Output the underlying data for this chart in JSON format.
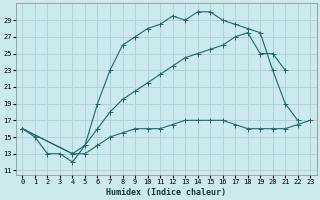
{
  "xlabel": "Humidex (Indice chaleur)",
  "background_color": "#cce9ee",
  "grid_color": "#aed4da",
  "line_color": "#1a6b6b",
  "line1_x": [
    0,
    1,
    2,
    3,
    4,
    5,
    6,
    7,
    8,
    9,
    10,
    11,
    12,
    13,
    14,
    15,
    16,
    17,
    18,
    19,
    20,
    21,
    22
  ],
  "line1_y": [
    16,
    15,
    13,
    13,
    12,
    14,
    19,
    23,
    26,
    27,
    28,
    28.5,
    29.5,
    29,
    30,
    30,
    29,
    28.5,
    28,
    27.5,
    23,
    19,
    17
  ],
  "line2_x": [
    0,
    4,
    5,
    6,
    7,
    8,
    9,
    10,
    11,
    12,
    13,
    14,
    15,
    16,
    17,
    18,
    19,
    20,
    21
  ],
  "line2_y": [
    16,
    13,
    14,
    16,
    18,
    19.5,
    20.5,
    21.5,
    22.5,
    23.5,
    24.5,
    25,
    25.5,
    26,
    27,
    27.5,
    25,
    25,
    23
  ],
  "line3_x": [
    0,
    4,
    5,
    6,
    7,
    8,
    9,
    10,
    11,
    12,
    13,
    14,
    15,
    16,
    17,
    18,
    19,
    20,
    21,
    22,
    23
  ],
  "line3_y": [
    16,
    13,
    13,
    14,
    15,
    15.5,
    16,
    16,
    16,
    16.5,
    17,
    17,
    17,
    17,
    16.5,
    16,
    16,
    16,
    16,
    16.5,
    17
  ],
  "xlim": [
    -0.5,
    23.5
  ],
  "ylim": [
    10.5,
    31
  ],
  "yticks": [
    11,
    13,
    15,
    17,
    19,
    21,
    23,
    25,
    27,
    29
  ],
  "xticks": [
    0,
    1,
    2,
    3,
    4,
    5,
    6,
    7,
    8,
    9,
    10,
    11,
    12,
    13,
    14,
    15,
    16,
    17,
    18,
    19,
    20,
    21,
    22,
    23
  ]
}
